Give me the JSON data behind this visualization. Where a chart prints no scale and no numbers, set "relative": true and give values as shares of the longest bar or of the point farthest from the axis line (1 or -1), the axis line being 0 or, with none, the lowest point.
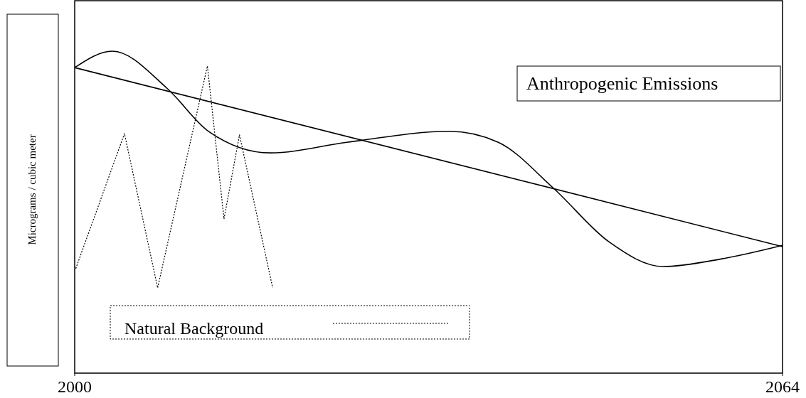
{
  "chart_data": {
    "type": "line",
    "relative": true,
    "ylabel": "Micrograms / cubic meter",
    "xlim": [
      2000,
      2064
    ],
    "xticks": [
      2000,
      2064
    ],
    "grid": false,
    "legend": "bottom left",
    "annotations": [
      "Anthropogenic Emissions"
    ],
    "series": [
      {
        "color": "#000000",
        "line_style": "solid",
        "x": [
          2000,
          2064
        ],
        "values": [
          0.949,
          0.393
        ]
      },
      {
        "color": "#000000",
        "line_style": "solid",
        "x": [
          2000,
          2003.4,
          2008.4,
          2012.1,
          2017.7,
          2024.6,
          2033.9,
          2038.3,
          2043.3,
          2048.3,
          2053.2,
          2058.2,
          2064
        ],
        "values": [
          0.949,
          1.0,
          0.883,
          0.751,
          0.684,
          0.717,
          0.751,
          0.717,
          0.574,
          0.408,
          0.331,
          0.353,
          0.397
        ]
      },
      {
        "name": "Natural Background",
        "color": "#000000",
        "line_style": "dotted",
        "x": [
          2000.1,
          2004.5,
          2007.5,
          2012.0,
          2013.5,
          2014.9,
          2017.9
        ],
        "values": [
          0.325,
          0.744,
          0.265,
          0.954,
          0.479,
          0.74,
          0.265
        ]
      }
    ]
  }
}
